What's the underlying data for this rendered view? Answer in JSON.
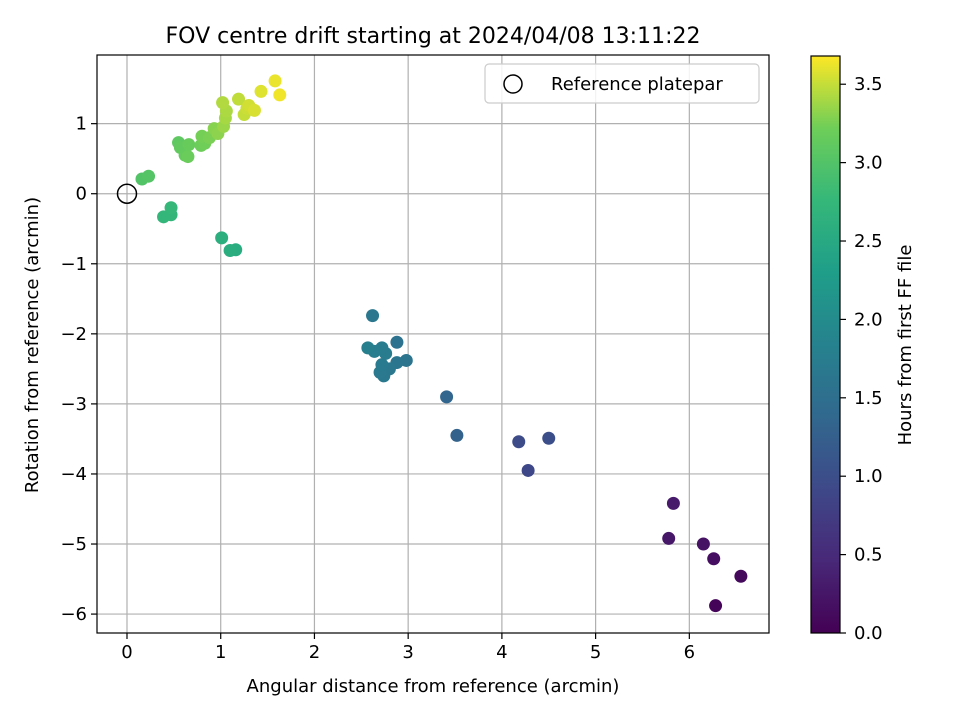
{
  "chart_data": {
    "type": "scatter",
    "title": "FOV centre drift starting at 2024/04/08 13:11:22",
    "xlabel": "Angular distance from reference (arcmin)",
    "ylabel": "Rotation from reference (arcmin)",
    "xlim": [
      -0.32,
      6.85
    ],
    "ylim": [
      -6.27,
      1.98
    ],
    "x_ticks": [
      0,
      1,
      2,
      3,
      4,
      5,
      6
    ],
    "y_ticks": [
      1,
      0,
      -1,
      -2,
      -3,
      -4,
      -5,
      -6
    ],
    "grid": true,
    "legend": {
      "placement": "top-right",
      "entries": [
        "Reference platepar"
      ]
    },
    "reference_point": {
      "name": "Reference platepar",
      "x": 0,
      "y": 0
    },
    "colorbar": {
      "label": "Hours from first FF file",
      "range": [
        0,
        3.68
      ],
      "ticks": [
        0.0,
        0.5,
        1.0,
        1.5,
        2.0,
        2.5,
        3.0,
        3.5
      ],
      "colormap": "viridis"
    },
    "points": [
      {
        "x": 6.28,
        "y": -5.88,
        "h": 0.05
      },
      {
        "x": 6.55,
        "y": -5.46,
        "h": 0.1
      },
      {
        "x": 6.26,
        "y": -5.21,
        "h": 0.15
      },
      {
        "x": 6.15,
        "y": -5.0,
        "h": 0.2
      },
      {
        "x": 5.78,
        "y": -4.92,
        "h": 0.25
      },
      {
        "x": 5.83,
        "y": -4.42,
        "h": 0.3
      },
      {
        "x": 4.28,
        "y": -3.95,
        "h": 0.9
      },
      {
        "x": 4.18,
        "y": -3.54,
        "h": 0.95
      },
      {
        "x": 4.5,
        "y": -3.49,
        "h": 1.0
      },
      {
        "x": 3.52,
        "y": -3.45,
        "h": 1.3
      },
      {
        "x": 3.41,
        "y": -2.9,
        "h": 1.35
      },
      {
        "x": 2.62,
        "y": -1.74,
        "h": 1.65
      },
      {
        "x": 2.88,
        "y": -2.12,
        "h": 1.55
      },
      {
        "x": 2.98,
        "y": -2.38,
        "h": 1.6
      },
      {
        "x": 2.88,
        "y": -2.41,
        "h": 1.62
      },
      {
        "x": 2.8,
        "y": -2.5,
        "h": 1.64
      },
      {
        "x": 2.74,
        "y": -2.6,
        "h": 1.66
      },
      {
        "x": 2.7,
        "y": -2.55,
        "h": 1.68
      },
      {
        "x": 2.72,
        "y": -2.44,
        "h": 1.7
      },
      {
        "x": 2.76,
        "y": -2.28,
        "h": 1.72
      },
      {
        "x": 2.72,
        "y": -2.2,
        "h": 1.74
      },
      {
        "x": 2.64,
        "y": -2.25,
        "h": 1.76
      },
      {
        "x": 2.57,
        "y": -2.2,
        "h": 1.78
      },
      {
        "x": 1.16,
        "y": -0.8,
        "h": 2.55
      },
      {
        "x": 1.1,
        "y": -0.81,
        "h": 2.57
      },
      {
        "x": 1.01,
        "y": -0.63,
        "h": 2.6
      },
      {
        "x": 0.47,
        "y": -0.3,
        "h": 2.72
      },
      {
        "x": 0.39,
        "y": -0.33,
        "h": 2.74
      },
      {
        "x": 0.47,
        "y": -0.2,
        "h": 2.76
      },
      {
        "x": 0.16,
        "y": 0.21,
        "h": 3.0
      },
      {
        "x": 0.23,
        "y": 0.25,
        "h": 3.02
      },
      {
        "x": 0.55,
        "y": 0.73,
        "h": 3.1
      },
      {
        "x": 0.57,
        "y": 0.66,
        "h": 3.12
      },
      {
        "x": 0.62,
        "y": 0.55,
        "h": 3.14
      },
      {
        "x": 0.66,
        "y": 0.7,
        "h": 3.16
      },
      {
        "x": 0.65,
        "y": 0.53,
        "h": 3.18
      },
      {
        "x": 0.79,
        "y": 0.69,
        "h": 3.2
      },
      {
        "x": 0.83,
        "y": 0.72,
        "h": 3.22
      },
      {
        "x": 0.8,
        "y": 0.82,
        "h": 3.24
      },
      {
        "x": 0.88,
        "y": 0.8,
        "h": 3.26
      },
      {
        "x": 0.93,
        "y": 0.93,
        "h": 3.3
      },
      {
        "x": 0.97,
        "y": 0.86,
        "h": 3.32
      },
      {
        "x": 1.03,
        "y": 0.96,
        "h": 3.36
      },
      {
        "x": 1.05,
        "y": 1.08,
        "h": 3.4
      },
      {
        "x": 1.06,
        "y": 1.18,
        "h": 3.42
      },
      {
        "x": 1.02,
        "y": 1.3,
        "h": 3.44
      },
      {
        "x": 1.19,
        "y": 1.35,
        "h": 3.48
      },
      {
        "x": 1.25,
        "y": 1.13,
        "h": 3.5
      },
      {
        "x": 1.28,
        "y": 1.22,
        "h": 3.52
      },
      {
        "x": 1.3,
        "y": 1.26,
        "h": 3.54
      },
      {
        "x": 1.36,
        "y": 1.19,
        "h": 3.56
      },
      {
        "x": 1.43,
        "y": 1.46,
        "h": 3.58
      },
      {
        "x": 1.58,
        "y": 1.61,
        "h": 3.62
      },
      {
        "x": 1.63,
        "y": 1.41,
        "h": 3.64
      }
    ]
  }
}
